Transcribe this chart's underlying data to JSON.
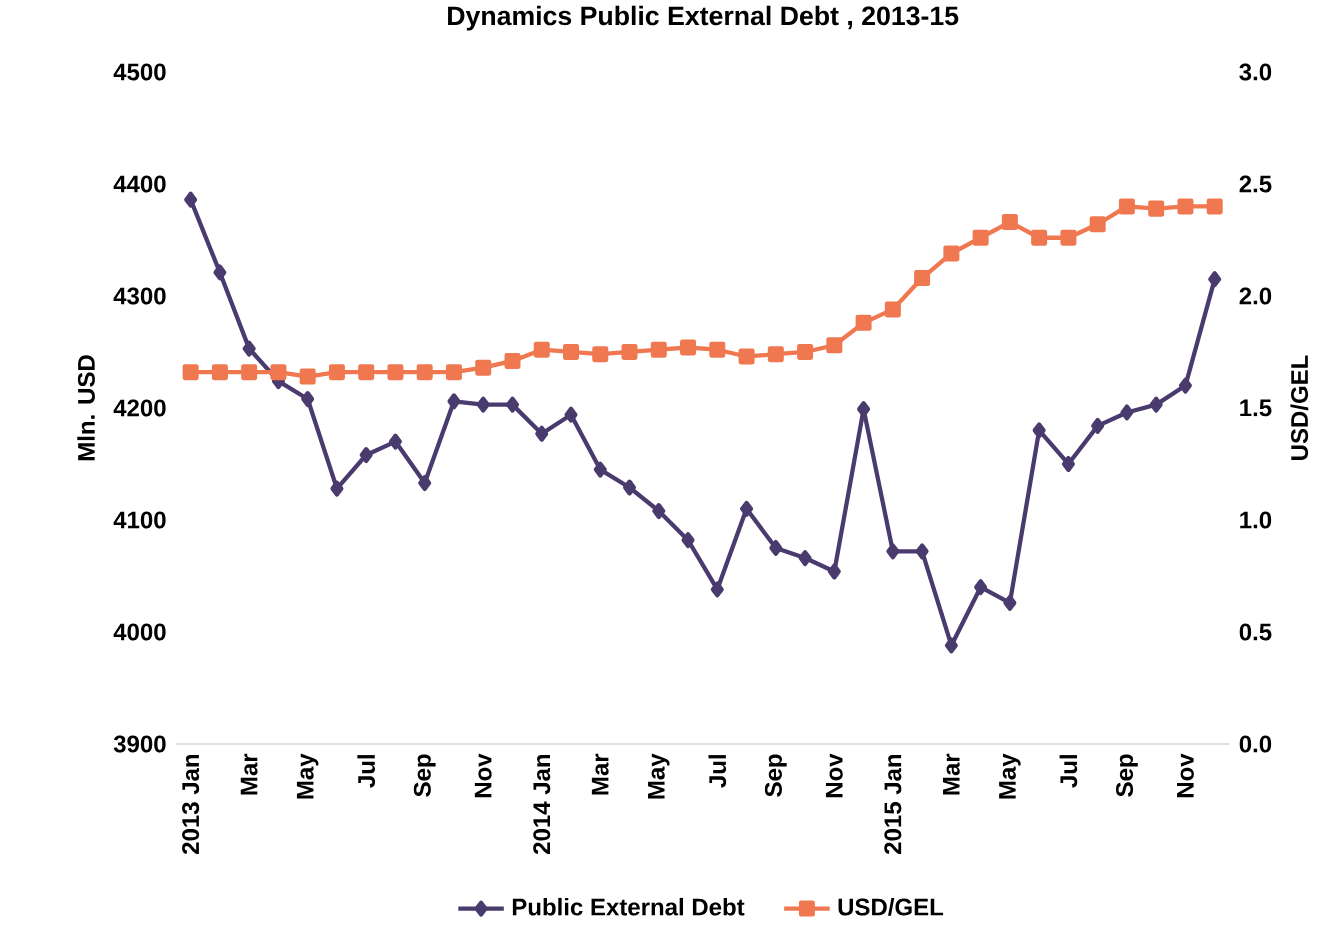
{
  "chart_data": {
    "type": "line",
    "title": "Dynamics Public External Debt , 2013-15",
    "ylabel": "Mln. USD",
    "y2label": "USD/GEL",
    "categories": [
      "2013 Jan",
      null,
      "Mar",
      null,
      "May",
      null,
      "Jul",
      null,
      "Sep",
      null,
      "Nov",
      null,
      "2014 Jan",
      null,
      "Mar",
      null,
      "May",
      null,
      "Jul",
      null,
      "Sep",
      null,
      "Nov",
      null,
      "2015 Jan",
      null,
      "Mar",
      null,
      "May",
      null,
      "Jul",
      null,
      "Sep",
      null,
      "Nov",
      null
    ],
    "series": [
      {
        "name": "Public External Debt",
        "color": "#4a3b6e",
        "marker": "diamond",
        "values": [
          4386,
          4321,
          4253,
          4224,
          4208,
          4128,
          4158,
          4170,
          4133,
          4206,
          4203,
          4203,
          4177,
          4194,
          4145,
          4129,
          4108,
          4082,
          4038,
          4110,
          4075,
          4066,
          4054,
          4199,
          4072,
          4072,
          3988,
          4040,
          4026,
          4180,
          4150,
          4184,
          4196,
          4203,
          4220,
          4315
        ]
      },
      {
        "name": "USD/GEL",
        "color": "#f07850",
        "marker": "square",
        "axis": "y2",
        "values": [
          1.66,
          1.66,
          1.66,
          1.66,
          1.64,
          1.66,
          1.66,
          1.66,
          1.66,
          1.66,
          1.68,
          1.71,
          1.76,
          1.75,
          1.74,
          1.75,
          1.76,
          1.77,
          1.76,
          1.73,
          1.74,
          1.75,
          1.78,
          1.88,
          1.94,
          2.08,
          2.19,
          2.26,
          2.33,
          2.26,
          2.26,
          2.32,
          2.4,
          2.39,
          2.4,
          2.4
        ]
      }
    ],
    "ylim": [
      3900,
      4500
    ],
    "yticks": [
      3900,
      4000,
      4100,
      4200,
      4300,
      4400,
      4500
    ],
    "y2lim": [
      0,
      3
    ],
    "y2ticks": [
      {
        "value": 0,
        "label": "0.0"
      },
      {
        "value": 0.5,
        "label": "0.5"
      },
      {
        "value": 1,
        "label": "1.0"
      },
      {
        "value": 1.5,
        "label": "1.5"
      },
      {
        "value": 2,
        "label": "2.0"
      },
      {
        "value": 2.5,
        "label": "2.5"
      },
      {
        "value": 3,
        "label": "3.0"
      }
    ],
    "legend": "bottom",
    "grid": false,
    "line_style": "solid"
  }
}
